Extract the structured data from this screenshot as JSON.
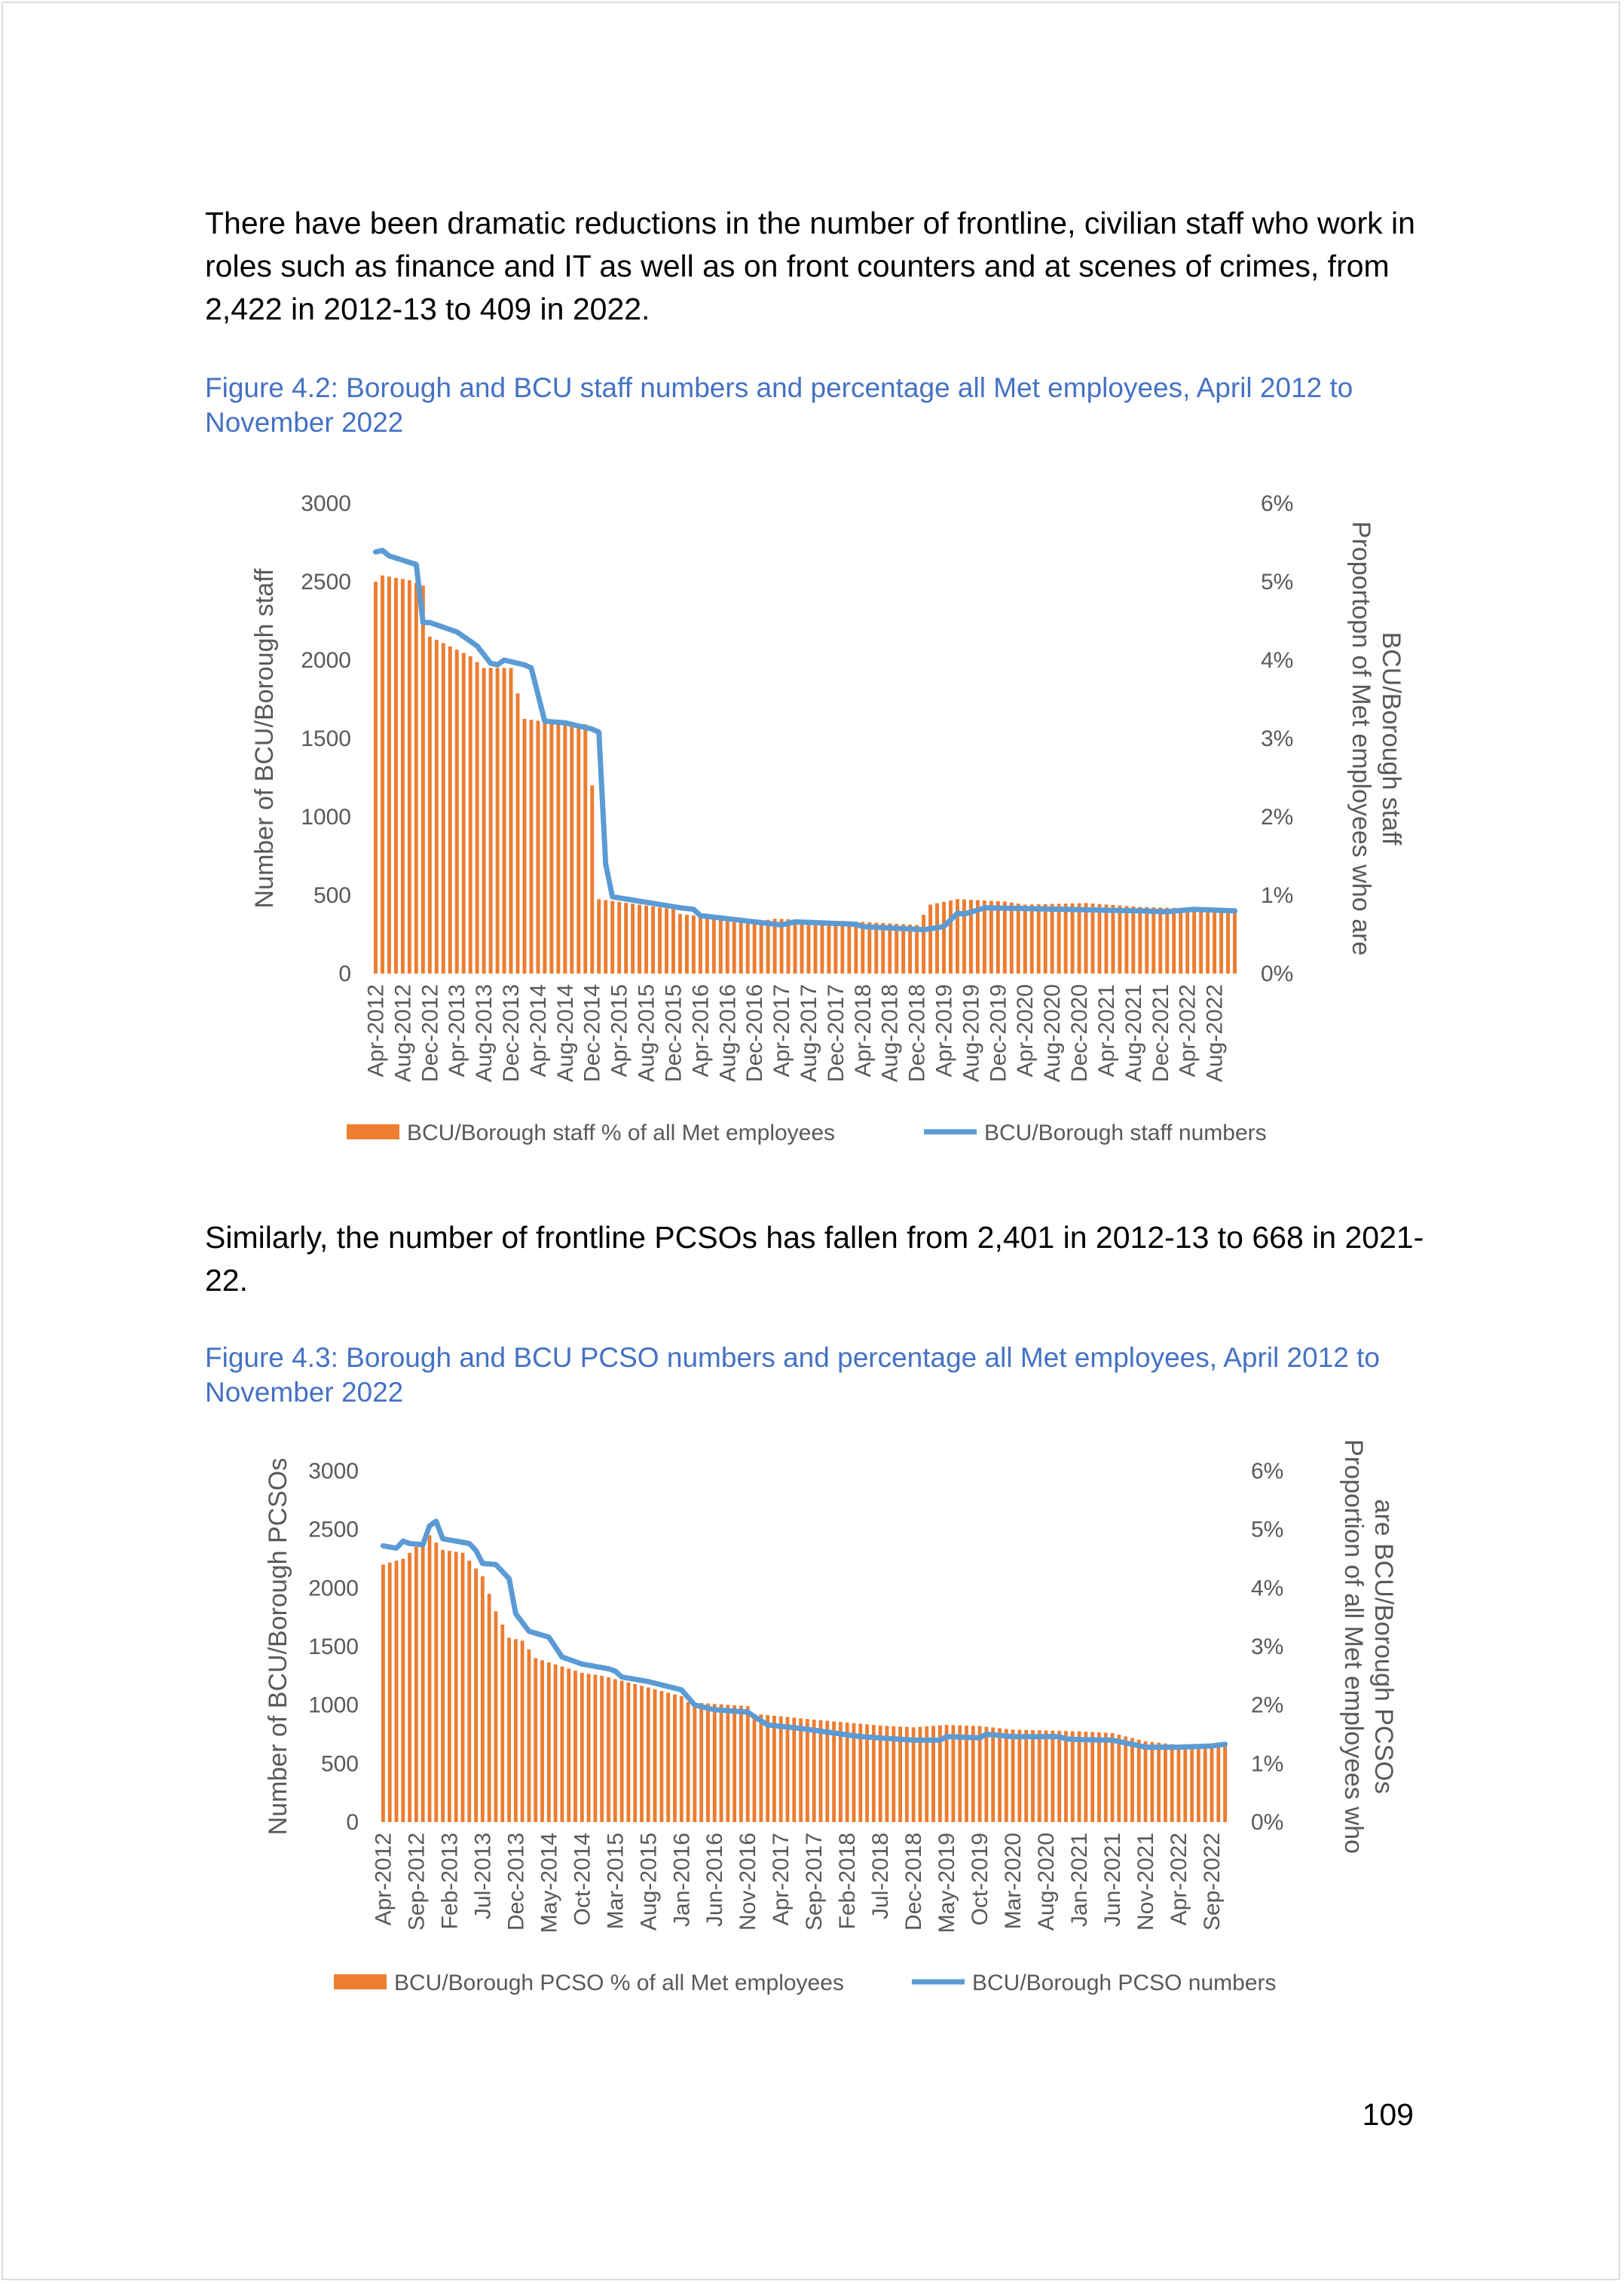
{
  "paragraphs": {
    "p1": "There have been dramatic reductions in the number of frontline, civilian staff who work in roles such as finance and IT as well as on front counters and at scenes of crimes, from 2,422 in 2012-13 to 409 in 2022.",
    "p2": "Similarly, the number of frontline PCSOs has fallen from 2,401 in 2012-13 to 668 in 2021-22."
  },
  "figures": {
    "fig1_caption": "Figure 4.2: Borough and BCU staff numbers and percentage all Met employees, April 2012 to November 2022",
    "fig2_caption": "Figure 4.3: Borough and BCU PCSO numbers and percentage all Met employees, April 2012 to November 2022"
  },
  "page_number": "109",
  "colors": {
    "bar": "#ed7d31",
    "line": "#5b9bd5",
    "caption": "#4472c4",
    "axis_text": "#595959"
  },
  "chart_data": [
    {
      "type": "bar",
      "title": "",
      "ylabel": "Number of BCU/Borough staff",
      "y2label_lines": [
        "Proportopn of Met employees who are",
        "BCU/Borough staff"
      ],
      "ylim": [
        0,
        3000
      ],
      "y2lim": [
        0,
        6
      ],
      "yticks": [
        "0",
        "500",
        "1000",
        "1500",
        "2000",
        "2500",
        "3000"
      ],
      "y2ticks": [
        "0%",
        "1%",
        "2%",
        "3%",
        "4%",
        "5%",
        "6%"
      ],
      "x_start": "Apr-2012",
      "x_end": "Nov-2022",
      "xtick_labels": [
        "Apr-2012",
        "Aug-2012",
        "Dec-2012",
        "Apr-2013",
        "Aug-2013",
        "Dec-2013",
        "Apr-2014",
        "Aug-2014",
        "Dec-2014",
        "Apr-2015",
        "Aug-2015",
        "Dec-2015",
        "Apr-2016",
        "Aug-2016",
        "Dec-2016",
        "Apr-2017",
        "Aug-2017",
        "Dec-2017",
        "Apr-2018",
        "Aug-2018",
        "Dec-2018",
        "Apr-2019",
        "Aug-2019",
        "Dec-2019",
        "Apr-2020",
        "Aug-2020",
        "Dec-2020",
        "Apr-2021",
        "Aug-2021",
        "Dec-2021",
        "Apr-2022",
        "Aug-2022"
      ],
      "legend": [
        "BCU/Borough staff % of all Met employees",
        "BCU/Borough staff numbers"
      ],
      "legend_position": "bottom",
      "series": [
        {
          "name": "BCU/Borough staff % of all Met employees",
          "kind": "bar",
          "axis": "secondary",
          "anchors": [
            [
              "Apr-2012",
              5.0
            ],
            [
              "May-2012",
              5.08
            ],
            [
              "Sep-2012",
              5.02
            ],
            [
              "Nov-2012",
              4.95
            ],
            [
              "Dec-2012",
              4.3
            ],
            [
              "Jun-2013",
              4.05
            ],
            [
              "Aug-2013",
              3.9
            ],
            [
              "Dec-2013",
              3.9
            ],
            [
              "Feb-2014",
              3.25
            ],
            [
              "Aug-2014",
              3.18
            ],
            [
              "Nov-2014",
              3.18
            ],
            [
              "Dec-2014",
              2.4
            ],
            [
              "Jan-2015",
              0.95
            ],
            [
              "Dec-2015",
              0.82
            ],
            [
              "Jan-2016",
              0.76
            ],
            [
              "Dec-2016",
              0.66
            ],
            [
              "Mar-2017",
              0.7
            ],
            [
              "Apr-2018",
              0.66
            ],
            [
              "Dec-2018",
              0.62
            ],
            [
              "Feb-2019",
              0.88
            ],
            [
              "Jun-2019",
              0.95
            ],
            [
              "Jan-2020",
              0.92
            ],
            [
              "Apr-2020",
              0.88
            ],
            [
              "Jan-2021",
              0.9
            ],
            [
              "Sep-2021",
              0.85
            ],
            [
              "Jan-2022",
              0.84
            ],
            [
              "Nov-2022",
              0.82
            ]
          ]
        },
        {
          "name": "BCU/Borough staff numbers",
          "kind": "line",
          "axis": "primary",
          "anchors": [
            [
              "Apr-2012",
              2690
            ],
            [
              "May-2012",
              2700
            ],
            [
              "Jun-2012",
              2665
            ],
            [
              "Oct-2012",
              2610
            ],
            [
              "Nov-2012",
              2240
            ],
            [
              "Dec-2012",
              2240
            ],
            [
              "Apr-2013",
              2180
            ],
            [
              "Jul-2013",
              2090
            ],
            [
              "Sep-2013",
              1980
            ],
            [
              "Oct-2013",
              1970
            ],
            [
              "Nov-2013",
              2000
            ],
            [
              "Feb-2014",
              1970
            ],
            [
              "Mar-2014",
              1950
            ],
            [
              "May-2014",
              1610
            ],
            [
              "Aug-2014",
              1600
            ],
            [
              "Oct-2014",
              1580
            ],
            [
              "Dec-2014",
              1560
            ],
            [
              "Jan-2015",
              1540
            ],
            [
              "Feb-2015",
              700
            ],
            [
              "Mar-2015",
              490
            ],
            [
              "Jan-2016",
              420
            ],
            [
              "Mar-2016",
              410
            ],
            [
              "Apr-2016",
              370
            ],
            [
              "Feb-2017",
              320
            ],
            [
              "Apr-2017",
              310
            ],
            [
              "Jun-2017",
              330
            ],
            [
              "Mar-2018",
              315
            ],
            [
              "Apr-2018",
              300
            ],
            [
              "Jan-2019",
              280
            ],
            [
              "Apr-2019",
              300
            ],
            [
              "Jun-2019",
              385
            ],
            [
              "Jul-2019",
              380
            ],
            [
              "Sep-2019",
              405
            ],
            [
              "Oct-2019",
              420
            ],
            [
              "Sep-2021",
              400
            ],
            [
              "Jan-2022",
              395
            ],
            [
              "May-2022",
              410
            ],
            [
              "Nov-2022",
              400
            ]
          ]
        }
      ]
    },
    {
      "type": "bar",
      "title": "",
      "ylabel": "Number of BCU/Borough PCSOs",
      "y2label_lines": [
        "Proportion of all Met employees who",
        "are BCU/Borough PCSOs"
      ],
      "ylim": [
        0,
        3000
      ],
      "y2lim": [
        0,
        6
      ],
      "yticks": [
        "0",
        "500",
        "1000",
        "1500",
        "2000",
        "2500",
        "3000"
      ],
      "y2ticks": [
        "0%",
        "1%",
        "2%",
        "3%",
        "4%",
        "5%",
        "6%"
      ],
      "x_start": "Apr-2012",
      "x_end": "Nov-2022",
      "xtick_labels": [
        "Apr-2012",
        "Sep-2012",
        "Feb-2013",
        "Jul-2013",
        "Dec-2013",
        "May-2014",
        "Oct-2014",
        "Mar-2015",
        "Aug-2015",
        "Jan-2016",
        "Jun-2016",
        "Nov-2016",
        "Apr-2017",
        "Sep-2017",
        "Feb-2018",
        "Jul-2018",
        "Dec-2018",
        "May-2019",
        "Oct-2019",
        "Mar-2020",
        "Aug-2020",
        "Jan-2021",
        "Jun-2021",
        "Nov-2021",
        "Apr-2022",
        "Sep-2022"
      ],
      "legend": [
        "BCU/Borough PCSO % of all Met employees",
        "BCU/Borough PCSO numbers"
      ],
      "legend_position": "bottom",
      "series": [
        {
          "name": "BCU/Borough PCSO % of all Met employees",
          "kind": "bar",
          "axis": "secondary",
          "anchors": [
            [
              "Apr-2012",
              4.4
            ],
            [
              "Jul-2012",
              4.5
            ],
            [
              "Nov-2012",
              4.9
            ],
            [
              "Jan-2013",
              4.65
            ],
            [
              "Apr-2013",
              4.6
            ],
            [
              "Jul-2013",
              4.2
            ],
            [
              "Sep-2013",
              3.6
            ],
            [
              "Nov-2013",
              3.15
            ],
            [
              "Jan-2014",
              3.1
            ],
            [
              "Mar-2014",
              2.8
            ],
            [
              "Oct-2014",
              2.55
            ],
            [
              "Jan-2015",
              2.5
            ],
            [
              "Aug-2015",
              2.3
            ],
            [
              "Jan-2016",
              2.15
            ],
            [
              "Feb-2016",
              2.05
            ],
            [
              "Nov-2016",
              1.98
            ],
            [
              "Dec-2016",
              1.85
            ],
            [
              "Sep-2017",
              1.75
            ],
            [
              "Jul-2018",
              1.65
            ],
            [
              "Dec-2018",
              1.62
            ],
            [
              "May-2019",
              1.66
            ],
            [
              "Oct-2019",
              1.64
            ],
            [
              "Mar-2020",
              1.58
            ],
            [
              "Jan-2021",
              1.55
            ],
            [
              "Jun-2021",
              1.52
            ],
            [
              "Nov-2021",
              1.38
            ],
            [
              "Apr-2022",
              1.32
            ],
            [
              "Nov-2022",
              1.34
            ]
          ]
        },
        {
          "name": "BCU/Borough PCSO numbers",
          "kind": "line",
          "axis": "primary",
          "anchors": [
            [
              "Apr-2012",
              2360
            ],
            [
              "Jun-2012",
              2340
            ],
            [
              "Jul-2012",
              2400
            ],
            [
              "Aug-2012",
              2380
            ],
            [
              "Oct-2012",
              2370
            ],
            [
              "Nov-2012",
              2530
            ],
            [
              "Dec-2012",
              2570
            ],
            [
              "Jan-2013",
              2420
            ],
            [
              "May-2013",
              2380
            ],
            [
              "Jun-2013",
              2320
            ],
            [
              "Jul-2013",
              2210
            ],
            [
              "Sep-2013",
              2200
            ],
            [
              "Nov-2013",
              2080
            ],
            [
              "Dec-2013",
              1780
            ],
            [
              "Feb-2014",
              1630
            ],
            [
              "May-2014",
              1580
            ],
            [
              "Jul-2014",
              1410
            ],
            [
              "Oct-2014",
              1350
            ],
            [
              "Feb-2015",
              1310
            ],
            [
              "Mar-2015",
              1290
            ],
            [
              "Apr-2015",
              1240
            ],
            [
              "Aug-2015",
              1200
            ],
            [
              "Jan-2016",
              1130
            ],
            [
              "Mar-2016",
              1000
            ],
            [
              "Jun-2016",
              960
            ],
            [
              "Nov-2016",
              940
            ],
            [
              "Dec-2016",
              900
            ],
            [
              "Feb-2017",
              830
            ],
            [
              "Jul-2017",
              800
            ],
            [
              "Apr-2018",
              730
            ],
            [
              "Dec-2018",
              700
            ],
            [
              "Apr-2019",
              700
            ],
            [
              "May-2019",
              730
            ],
            [
              "Oct-2019",
              720
            ],
            [
              "Nov-2019",
              750
            ],
            [
              "Mar-2020",
              730
            ],
            [
              "Oct-2020",
              730
            ],
            [
              "Nov-2020",
              710
            ],
            [
              "Jan-2021",
              705
            ],
            [
              "Jun-2021",
              700
            ],
            [
              "Nov-2021",
              640
            ],
            [
              "Apr-2022",
              640
            ],
            [
              "Sep-2022",
              650
            ],
            [
              "Nov-2022",
              665
            ]
          ]
        }
      ]
    }
  ]
}
